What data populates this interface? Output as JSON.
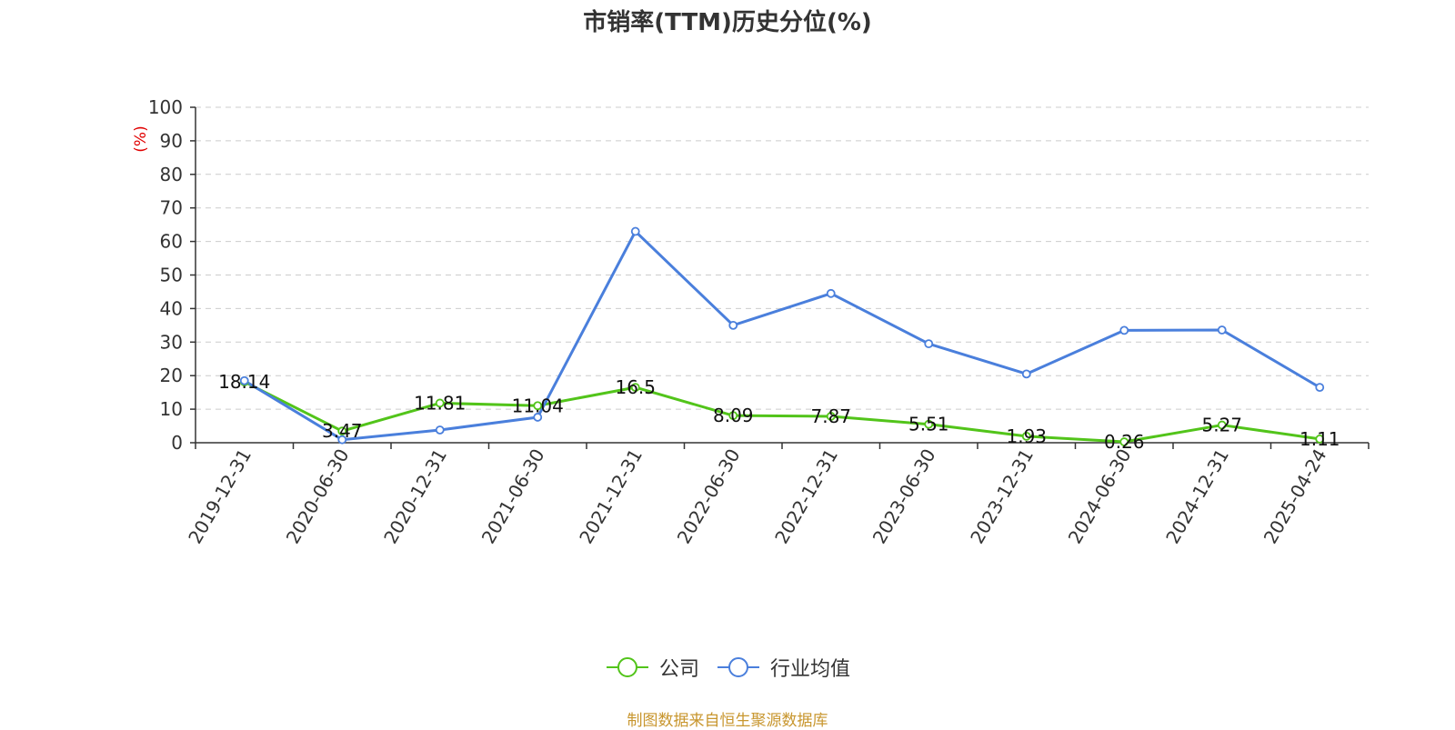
{
  "chart_data": {
    "type": "line",
    "title": "市销率(TTM)历史分位(%)",
    "ylabel": "(%)",
    "ylim": [
      0,
      100
    ],
    "yticks": [
      "0",
      "10",
      "20",
      "30",
      "40",
      "50",
      "60",
      "70",
      "80",
      "90",
      "100"
    ],
    "grid": true,
    "legend_position": "bottom-center",
    "categories": [
      "2019-12-31",
      "2020-06-30",
      "2020-12-31",
      "2021-06-30",
      "2021-12-31",
      "2022-06-30",
      "2022-12-31",
      "2023-06-30",
      "2023-12-31",
      "2024-06-30",
      "2024-12-31",
      "2025-04-24"
    ],
    "series": [
      {
        "name": "公司",
        "color": "#52c41a",
        "values": [
          18.14,
          3.47,
          11.81,
          11.04,
          16.5,
          8.09,
          7.87,
          5.51,
          1.93,
          0.26,
          5.27,
          1.11
        ],
        "labels": [
          "18.14",
          "3.47",
          "11.81",
          "11.04",
          "16.5",
          "8.09",
          "7.87",
          "5.51",
          "1.93",
          "0.26",
          "5.27",
          "1.11"
        ]
      },
      {
        "name": "行业均值",
        "color": "#4a7fdc",
        "values": [
          18.5,
          0.9,
          3.8,
          7.6,
          63.0,
          35.0,
          44.5,
          29.5,
          20.5,
          33.5,
          33.6,
          16.5
        ]
      }
    ]
  },
  "footer": {
    "source": "制图数据来自恒生聚源数据库"
  },
  "colors": {
    "axis": "#333333",
    "ylabel": "#e00000",
    "source": "#c8962e"
  }
}
